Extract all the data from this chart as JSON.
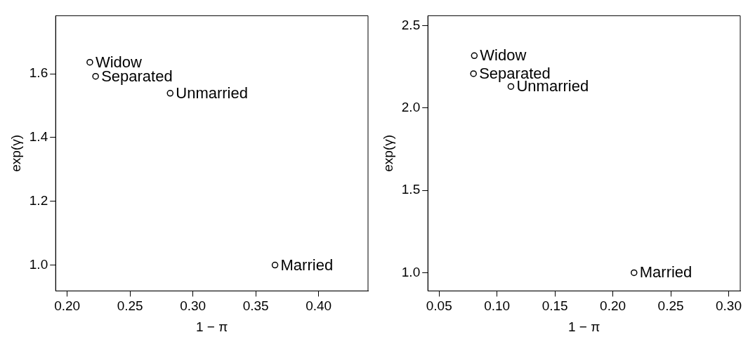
{
  "chart_data": [
    {
      "type": "scatter",
      "xlabel": "1 − π",
      "ylabel": "exp(γ)",
      "marker": "circle",
      "grid": false,
      "color": "#000000",
      "x": [
        0.218,
        0.2226,
        0.2819,
        0.3653
      ],
      "values": [
        1.636,
        1.592,
        1.539,
        1.0
      ],
      "xlim": [
        0.1908,
        0.4393
      ],
      "ylim": [
        0.919,
        1.782
      ],
      "xticks": [
        {
          "value": 0.2,
          "label": "0.20"
        },
        {
          "value": 0.25,
          "label": "0.25"
        },
        {
          "value": 0.3,
          "label": "0.30"
        },
        {
          "value": 0.35,
          "label": "0.35"
        },
        {
          "value": 0.4,
          "label": "0.40"
        }
      ],
      "yticks": [
        {
          "value": 1,
          "label": "1.0"
        },
        {
          "value": 1.2,
          "label": "1.2"
        },
        {
          "value": 1.4,
          "label": "1.4"
        },
        {
          "value": 1.6,
          "label": "1.6"
        }
      ],
      "annotations": [
        {
          "text": "Widow",
          "x": 0.218,
          "y": 1.636
        },
        {
          "text": "Separated",
          "x": 0.2226,
          "y": 1.592
        },
        {
          "text": "Unmarried",
          "x": 0.2819,
          "y": 1.539
        },
        {
          "text": "Married",
          "x": 0.3653,
          "y": 1.0
        }
      ]
    },
    {
      "type": "scatter",
      "xlabel": "1 − π",
      "ylabel": "exp(γ)",
      "marker": "circle",
      "grid": false,
      "color": "#000000",
      "x": [
        0.0804,
        0.0797,
        0.112,
        0.2183
      ],
      "values": [
        2.318,
        2.209,
        2.131,
        1.0
      ],
      "xlim": [
        0.0403,
        0.31
      ],
      "ylim": [
        0.889,
        2.561
      ],
      "xticks": [
        {
          "value": 0.05,
          "label": "0.05"
        },
        {
          "value": 0.1,
          "label": "0.10"
        },
        {
          "value": 0.15,
          "label": "0.15"
        },
        {
          "value": 0.2,
          "label": "0.20"
        },
        {
          "value": 0.25,
          "label": "0.25"
        },
        {
          "value": 0.3,
          "label": "0.30"
        }
      ],
      "yticks": [
        {
          "value": 1,
          "label": "1.0"
        },
        {
          "value": 1.5,
          "label": "1.5"
        },
        {
          "value": 2,
          "label": "2.0"
        },
        {
          "value": 2.5,
          "label": "2.5"
        }
      ],
      "annotations": [
        {
          "text": "Widow",
          "x": 0.0804,
          "y": 2.318
        },
        {
          "text": "Separated",
          "x": 0.0797,
          "y": 2.209
        },
        {
          "text": "Unmarried",
          "x": 0.112,
          "y": 2.131
        },
        {
          "text": "Married",
          "x": 0.2183,
          "y": 1.0
        }
      ]
    }
  ]
}
